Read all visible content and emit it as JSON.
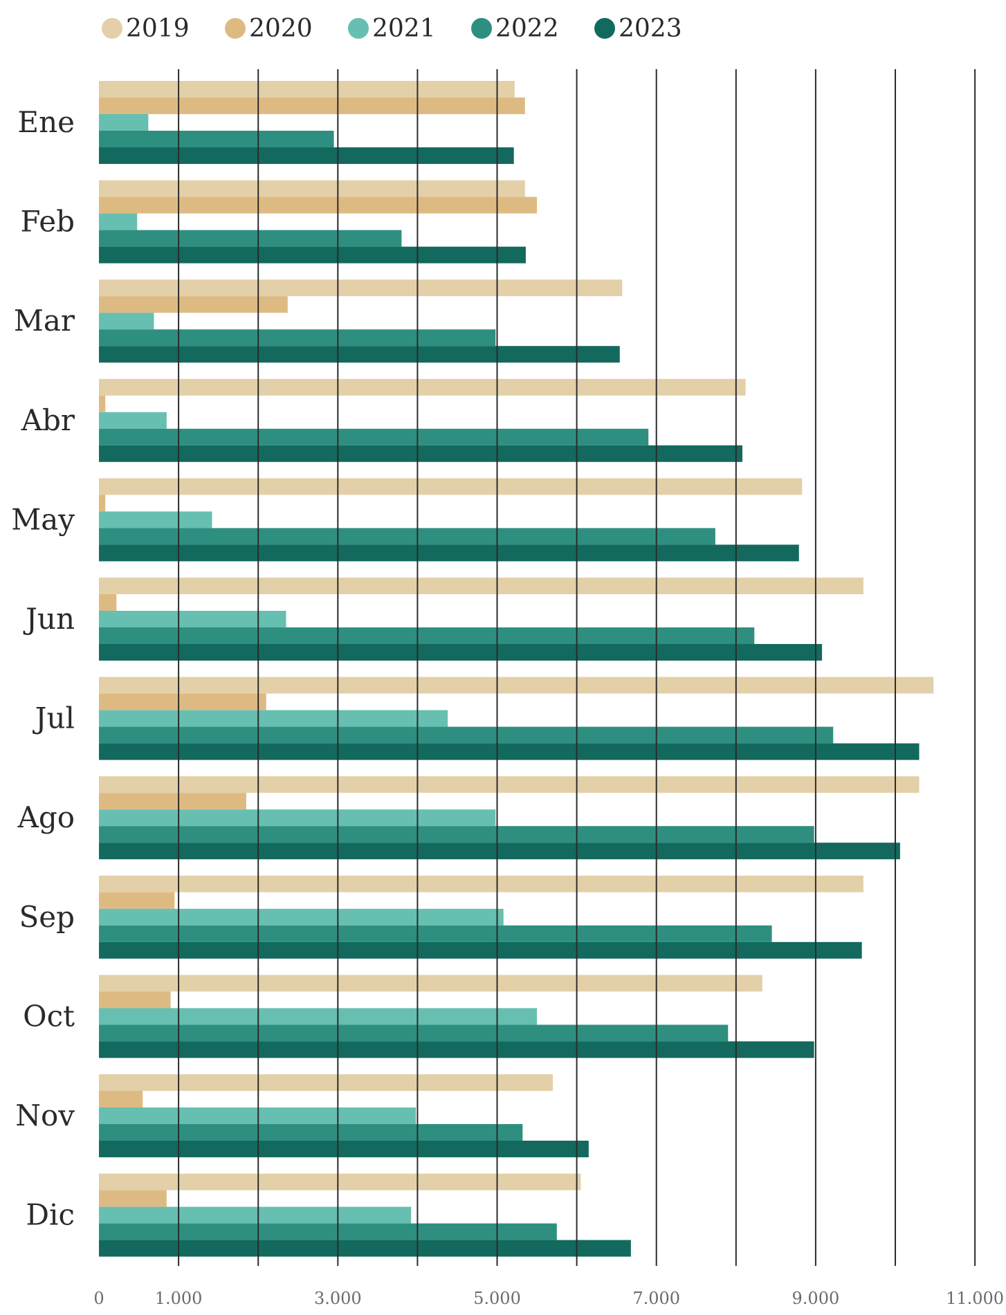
{
  "chart_data": {
    "type": "bar",
    "orientation": "horizontal",
    "categories": [
      "Ene",
      "Feb",
      "Mar",
      "Abr",
      "May",
      "Jun",
      "Jul",
      "Ago",
      "Sep",
      "Oct",
      "Nov",
      "Dic"
    ],
    "series": [
      {
        "name": "2019",
        "color": "#e3d0a8",
        "values": [
          5220,
          5350,
          6570,
          8120,
          8830,
          9600,
          10480,
          10300,
          9600,
          8330,
          5700,
          6050
        ]
      },
      {
        "name": "2020",
        "color": "#deba83",
        "values": [
          5350,
          5500,
          2370,
          80,
          80,
          220,
          2100,
          1850,
          950,
          900,
          550,
          850
        ]
      },
      {
        "name": "2021",
        "color": "#66bfb0",
        "values": [
          620,
          480,
          690,
          850,
          1420,
          2350,
          4380,
          4980,
          5080,
          5500,
          3980,
          3920
        ]
      },
      {
        "name": "2022",
        "color": "#2e8f80",
        "values": [
          2950,
          3800,
          4980,
          6900,
          7740,
          8230,
          9220,
          8980,
          8450,
          7900,
          5320,
          5750
        ]
      },
      {
        "name": "2023",
        "color": "#13695d",
        "values": [
          5210,
          5360,
          6540,
          8080,
          8790,
          9080,
          10300,
          10060,
          9580,
          8980,
          6150,
          6680
        ]
      }
    ],
    "xlim": [
      0,
      11000
    ],
    "x_ticks": [
      0,
      1000,
      3000,
      5000,
      7000,
      9000,
      11000
    ],
    "x_tick_labels": [
      "0",
      "1.000",
      "3.000",
      "5.000",
      "7.000",
      "9.000",
      "11.000"
    ],
    "gridlines_at": [
      1000,
      2000,
      3000,
      4000,
      5000,
      6000,
      7000,
      8000,
      9000,
      10000,
      11000
    ],
    "grid": true,
    "legend_position": "top-left"
  }
}
